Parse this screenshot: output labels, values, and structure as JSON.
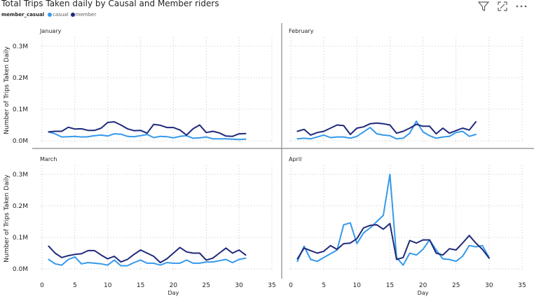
{
  "title": "Total Trips Taken daily by Causal and Member riders",
  "legend": {
    "title": "member_casual",
    "items": [
      {
        "label": "casual",
        "color": "#3599eb"
      },
      {
        "label": "member",
        "color": "#1f2a7a"
      }
    ]
  },
  "toolbar": {
    "icons": [
      "filter-icon",
      "focus-mode-icon",
      "more-options-icon"
    ]
  },
  "chart_data": {
    "type": "line",
    "layout": "small-multiples-2x2",
    "ylabel": "Number of Trips Taken Daily",
    "xlabel": "Day",
    "yticks": [
      "0.0M",
      "0.1M",
      "0.2M",
      "0.3M"
    ],
    "ylim": [
      0,
      0.32
    ],
    "xticks": [
      0,
      5,
      10,
      15,
      20,
      25,
      30,
      35
    ],
    "xlim": [
      0,
      35
    ],
    "grid": true,
    "legend_position": "top-left",
    "panels": [
      {
        "name": "January",
        "series": [
          {
            "name": "casual",
            "color": "#3599eb",
            "x": [
              1,
              2,
              3,
              4,
              5,
              6,
              7,
              8,
              9,
              10,
              11,
              12,
              13,
              14,
              15,
              16,
              17,
              18,
              19,
              20,
              21,
              22,
              23,
              24,
              25,
              26,
              27,
              28,
              29,
              30,
              31
            ],
            "values": [
              0.028,
              0.022,
              0.012,
              0.013,
              0.014,
              0.012,
              0.013,
              0.016,
              0.018,
              0.015,
              0.022,
              0.021,
              0.014,
              0.013,
              0.016,
              0.02,
              0.01,
              0.014,
              0.013,
              0.009,
              0.014,
              0.016,
              0.008,
              0.009,
              0.012,
              0.006,
              0.006,
              0.006,
              0.005,
              0.004,
              0.005
            ]
          },
          {
            "name": "member",
            "color": "#1f2a7a",
            "x": [
              1,
              2,
              3,
              4,
              5,
              6,
              7,
              8,
              9,
              10,
              11,
              12,
              13,
              14,
              15,
              16,
              17,
              18,
              19,
              20,
              21,
              22,
              23,
              24,
              25,
              26,
              27,
              28,
              29,
              30,
              31
            ],
            "values": [
              0.028,
              0.03,
              0.03,
              0.043,
              0.037,
              0.038,
              0.033,
              0.033,
              0.04,
              0.058,
              0.06,
              0.05,
              0.038,
              0.032,
              0.033,
              0.024,
              0.052,
              0.049,
              0.042,
              0.042,
              0.034,
              0.018,
              0.038,
              0.05,
              0.026,
              0.03,
              0.025,
              0.015,
              0.014,
              0.022,
              0.023
            ]
          }
        ]
      },
      {
        "name": "February",
        "series": [
          {
            "name": "casual",
            "color": "#3599eb",
            "x": [
              1,
              2,
              3,
              4,
              5,
              6,
              7,
              8,
              9,
              10,
              11,
              12,
              13,
              14,
              15,
              16,
              17,
              18,
              19,
              20,
              21,
              22,
              23,
              24,
              25,
              26,
              27,
              28
            ],
            "values": [
              0.006,
              0.008,
              0.006,
              0.012,
              0.018,
              0.01,
              0.012,
              0.012,
              0.008,
              0.014,
              0.028,
              0.042,
              0.022,
              0.018,
              0.016,
              0.006,
              0.008,
              0.024,
              0.062,
              0.028,
              0.016,
              0.008,
              0.012,
              0.014,
              0.026,
              0.03,
              0.014,
              0.02
            ]
          },
          {
            "name": "member",
            "color": "#1f2a7a",
            "x": [
              1,
              2,
              3,
              4,
              5,
              6,
              7,
              8,
              9,
              10,
              11,
              12,
              13,
              14,
              15,
              16,
              17,
              18,
              19,
              20,
              21,
              22,
              23,
              24,
              25,
              26,
              27,
              28
            ],
            "values": [
              0.03,
              0.036,
              0.018,
              0.026,
              0.03,
              0.04,
              0.05,
              0.048,
              0.02,
              0.04,
              0.044,
              0.054,
              0.056,
              0.054,
              0.05,
              0.024,
              0.03,
              0.04,
              0.052,
              0.046,
              0.046,
              0.022,
              0.04,
              0.024,
              0.032,
              0.04,
              0.034,
              0.06
            ]
          }
        ]
      },
      {
        "name": "March",
        "series": [
          {
            "name": "casual",
            "color": "#3599eb",
            "x": [
              1,
              2,
              3,
              4,
              5,
              6,
              7,
              8,
              9,
              10,
              11,
              12,
              13,
              14,
              15,
              16,
              17,
              18,
              19,
              20,
              21,
              22,
              23,
              24,
              25,
              26,
              27,
              28,
              29,
              30,
              31
            ],
            "values": [
              0.03,
              0.016,
              0.012,
              0.03,
              0.038,
              0.016,
              0.02,
              0.018,
              0.016,
              0.012,
              0.028,
              0.01,
              0.01,
              0.02,
              0.028,
              0.018,
              0.018,
              0.012,
              0.02,
              0.018,
              0.018,
              0.028,
              0.018,
              0.018,
              0.022,
              0.022,
              0.026,
              0.03,
              0.02,
              0.03,
              0.034
            ]
          },
          {
            "name": "member",
            "color": "#1f2a7a",
            "x": [
              1,
              2,
              3,
              4,
              5,
              6,
              7,
              8,
              9,
              10,
              11,
              12,
              13,
              14,
              15,
              16,
              17,
              18,
              19,
              20,
              21,
              22,
              23,
              24,
              25,
              26,
              27,
              28,
              29,
              30,
              31
            ],
            "values": [
              0.072,
              0.05,
              0.036,
              0.042,
              0.046,
              0.048,
              0.058,
              0.058,
              0.044,
              0.032,
              0.04,
              0.022,
              0.03,
              0.046,
              0.06,
              0.05,
              0.04,
              0.02,
              0.032,
              0.05,
              0.068,
              0.054,
              0.05,
              0.05,
              0.028,
              0.034,
              0.05,
              0.066,
              0.05,
              0.06,
              0.044
            ]
          }
        ]
      },
      {
        "name": "April",
        "series": [
          {
            "name": "casual",
            "color": "#3599eb",
            "x": [
              1,
              2,
              3,
              4,
              5,
              6,
              7,
              8,
              9,
              10,
              11,
              12,
              13,
              14,
              15,
              16,
              17,
              18,
              19,
              20,
              21,
              22,
              23,
              24,
              25,
              26,
              27,
              28,
              29,
              30
            ],
            "values": [
              0.024,
              0.072,
              0.03,
              0.024,
              0.036,
              0.048,
              0.06,
              0.14,
              0.146,
              0.08,
              0.114,
              0.13,
              0.15,
              0.17,
              0.3,
              0.036,
              0.012,
              0.05,
              0.044,
              0.062,
              0.092,
              0.06,
              0.032,
              0.03,
              0.024,
              0.04,
              0.074,
              0.07,
              0.074,
              0.036
            ]
          },
          {
            "name": "member",
            "color": "#1f2a7a",
            "x": [
              1,
              2,
              3,
              4,
              5,
              6,
              7,
              8,
              9,
              10,
              11,
              12,
              13,
              14,
              15,
              16,
              17,
              18,
              19,
              20,
              21,
              22,
              23,
              24,
              25,
              26,
              27,
              28,
              29,
              30
            ],
            "values": [
              0.032,
              0.066,
              0.058,
              0.05,
              0.056,
              0.074,
              0.062,
              0.08,
              0.082,
              0.096,
              0.13,
              0.138,
              0.14,
              0.126,
              0.144,
              0.03,
              0.036,
              0.09,
              0.082,
              0.092,
              0.092,
              0.05,
              0.044,
              0.064,
              0.06,
              0.082,
              0.106,
              0.082,
              0.062,
              0.034
            ]
          }
        ]
      }
    ]
  }
}
